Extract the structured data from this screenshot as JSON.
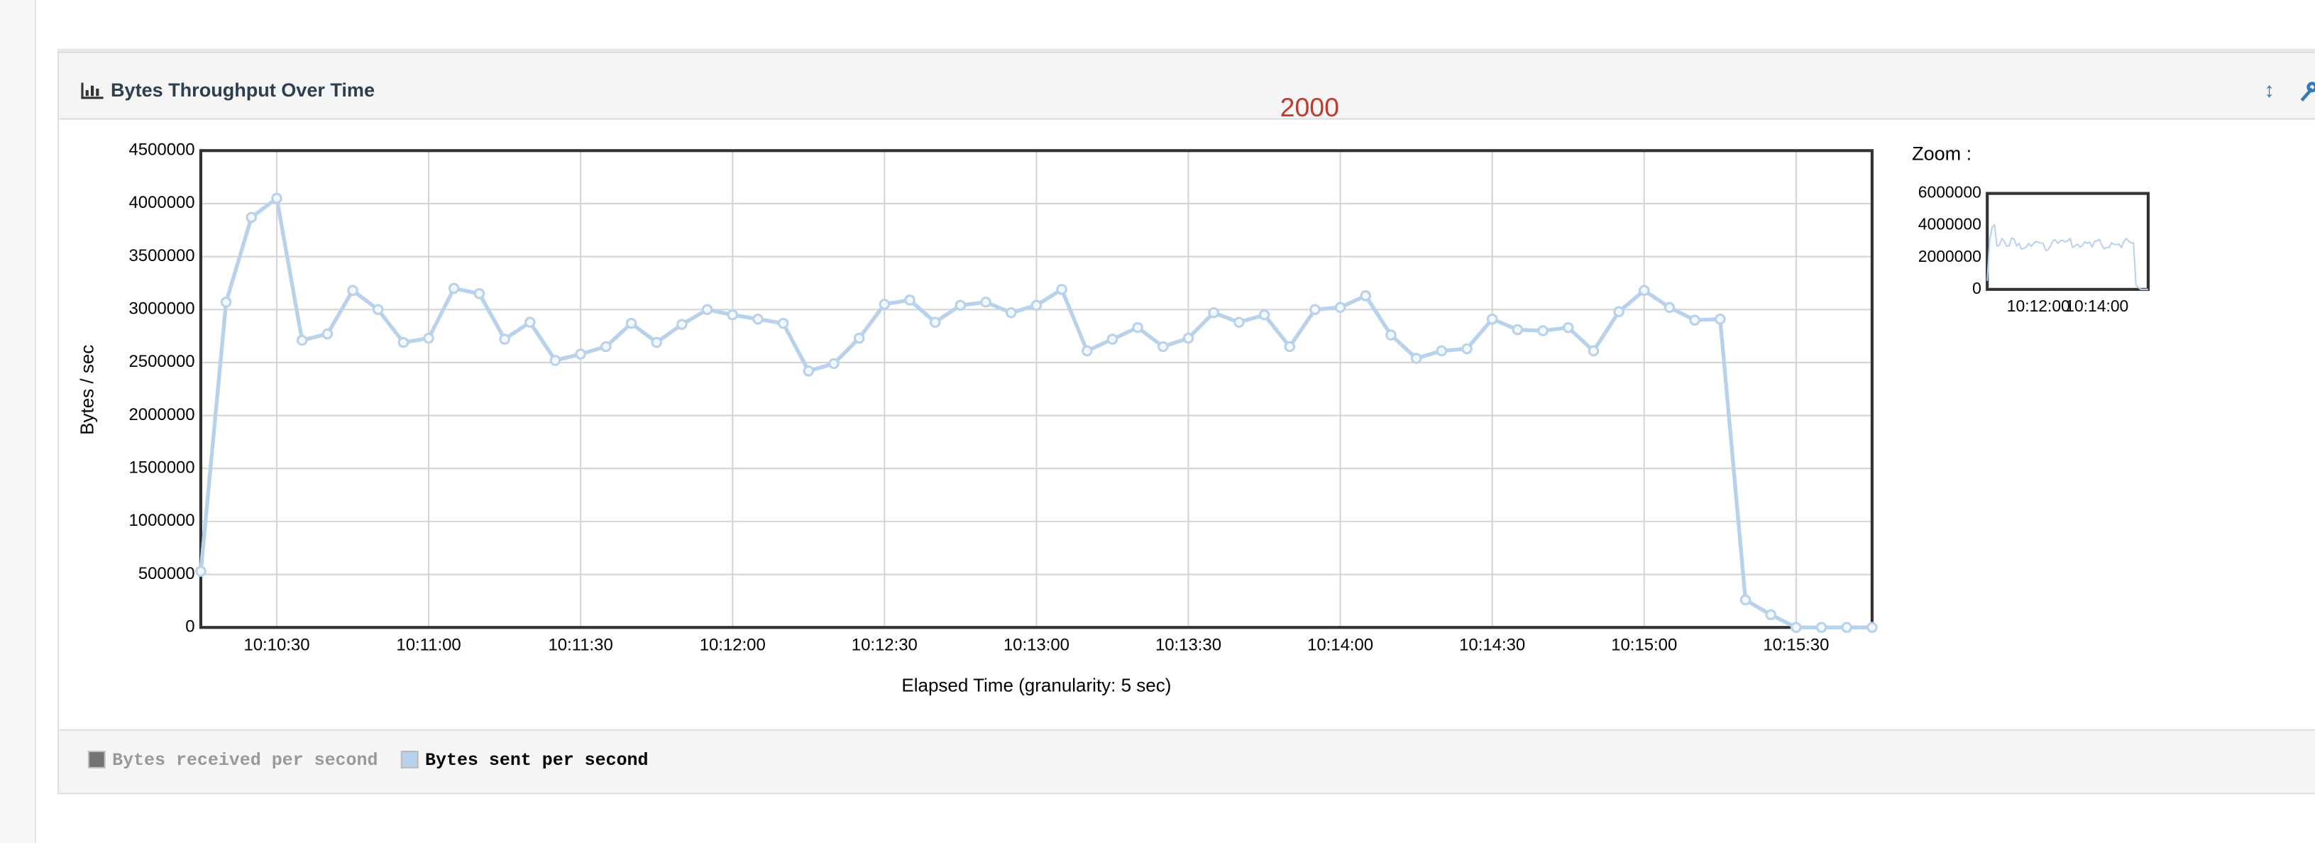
{
  "chart_data": {
    "type": "line",
    "title": "Bytes Throughput Over Time",
    "annotation": "2000",
    "x_label": "Elapsed Time (granularity: 5 sec)",
    "y_label": "Bytes / sec",
    "x": [
      "10:10:15",
      "10:10:20",
      "10:10:25",
      "10:10:30",
      "10:10:35",
      "10:10:40",
      "10:10:45",
      "10:10:50",
      "10:10:55",
      "10:11:00",
      "10:11:05",
      "10:11:10",
      "10:11:15",
      "10:11:20",
      "10:11:25",
      "10:11:30",
      "10:11:35",
      "10:11:40",
      "10:11:45",
      "10:11:50",
      "10:11:55",
      "10:12:00",
      "10:12:05",
      "10:12:10",
      "10:12:15",
      "10:12:20",
      "10:12:25",
      "10:12:30",
      "10:12:35",
      "10:12:40",
      "10:12:45",
      "10:12:50",
      "10:12:55",
      "10:13:00",
      "10:13:05",
      "10:13:10",
      "10:13:15",
      "10:13:20",
      "10:13:25",
      "10:13:30",
      "10:13:35",
      "10:13:40",
      "10:13:45",
      "10:13:50",
      "10:13:55",
      "10:14:00",
      "10:14:05",
      "10:14:10",
      "10:14:15",
      "10:14:20",
      "10:14:25",
      "10:14:30",
      "10:14:35",
      "10:14:40",
      "10:14:45",
      "10:14:50",
      "10:14:55",
      "10:15:00",
      "10:15:05",
      "10:15:10",
      "10:15:15",
      "10:15:20",
      "10:15:25",
      "10:15:30",
      "10:15:35",
      "10:15:40",
      "10:15:45"
    ],
    "series": [
      {
        "name": "Bytes sent per second",
        "color": "#b7d2ea",
        "values": [
          530000,
          3070000,
          3870000,
          4050000,
          2710000,
          2770000,
          3180000,
          3000000,
          2690000,
          2730000,
          3200000,
          3150000,
          2720000,
          2880000,
          2520000,
          2580000,
          2650000,
          2870000,
          2690000,
          2860000,
          3000000,
          2950000,
          2910000,
          2870000,
          2420000,
          2490000,
          2730000,
          3050000,
          3090000,
          2880000,
          3040000,
          3070000,
          2970000,
          3040000,
          3190000,
          2610000,
          2720000,
          2830000,
          2650000,
          2730000,
          2970000,
          2880000,
          2950000,
          2650000,
          3000000,
          3020000,
          3130000,
          2760000,
          2540000,
          2610000,
          2630000,
          2910000,
          2810000,
          2800000,
          2830000,
          2610000,
          2980000,
          3180000,
          3020000,
          2900000,
          2910000,
          260000,
          120000,
          0,
          0,
          0,
          0
        ]
      }
    ],
    "hidden_series": [
      {
        "name": "Bytes received per second",
        "color": "#666666"
      }
    ],
    "xlim": [
      "10:10:15",
      "10:15:45"
    ],
    "xticks": [
      "10:10:30",
      "10:11:00",
      "10:11:30",
      "10:12:00",
      "10:12:30",
      "10:13:00",
      "10:13:30",
      "10:14:00",
      "10:14:30",
      "10:15:00",
      "10:15:30"
    ],
    "ylim": [
      0,
      4500000
    ],
    "yticks": [
      0,
      500000,
      1000000,
      1500000,
      2000000,
      2500000,
      3000000,
      3500000,
      4000000,
      4500000
    ],
    "grid": true,
    "zoom": {
      "label": "Zoom :",
      "ylim": [
        0,
        6000000
      ],
      "yticks": [
        0,
        2000000,
        4000000,
        6000000
      ],
      "xticks": [
        "10:12:00",
        "10:14:00"
      ]
    }
  }
}
